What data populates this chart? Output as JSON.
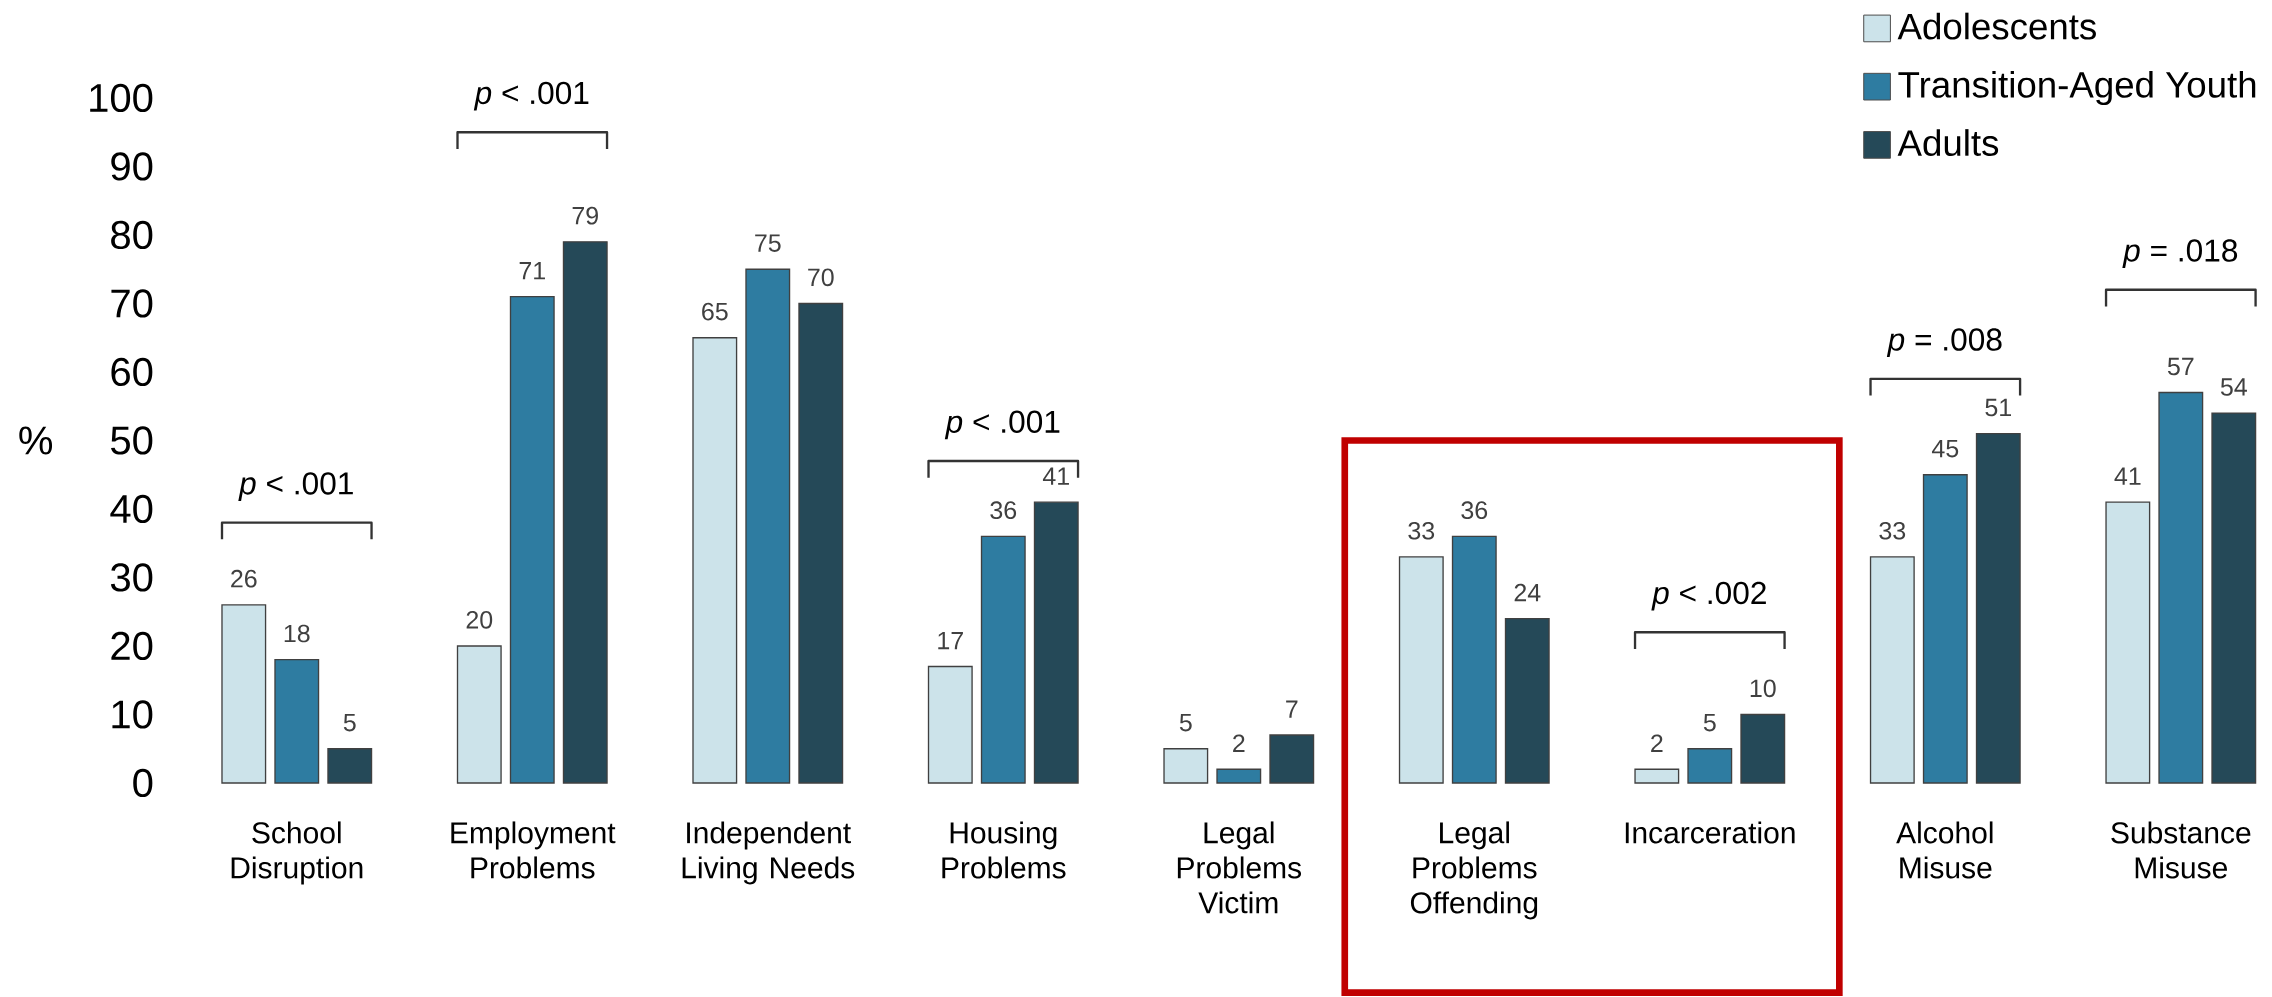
{
  "chart_data": {
    "type": "bar",
    "ylabel": "%",
    "categories": [
      "School Disruption",
      "Employment Problems",
      "Independent Living Needs",
      "Housing Problems",
      "Legal Problems Victim",
      "Legal Problems Offending",
      "Incarceration",
      "Alcohol Misuse",
      "Substance Misuse"
    ],
    "series": [
      {
        "name": "Adolescents",
        "color": "#cce3ea",
        "values": [
          26,
          20,
          65,
          17,
          5,
          33,
          2,
          33,
          41
        ]
      },
      {
        "name": "Transition-Aged Youth",
        "color": "#2e7ca1",
        "values": [
          18,
          71,
          75,
          36,
          2,
          36,
          5,
          45,
          57
        ]
      },
      {
        "name": "Adults",
        "color": "#254958",
        "values": [
          5,
          79,
          70,
          41,
          7,
          24,
          10,
          51,
          54
        ]
      }
    ],
    "ylim": [
      0,
      100
    ],
    "yticks": [
      0,
      10,
      20,
      30,
      40,
      50,
      60,
      70,
      80,
      90,
      100
    ],
    "data_labels": true,
    "legend": "top right",
    "annotations": [
      "*p* < .001",
      "*p* < .001",
      "*p* < .001",
      "*p* < .002",
      "*p* = .008",
      "*p* = .018"
    ]
  }
}
